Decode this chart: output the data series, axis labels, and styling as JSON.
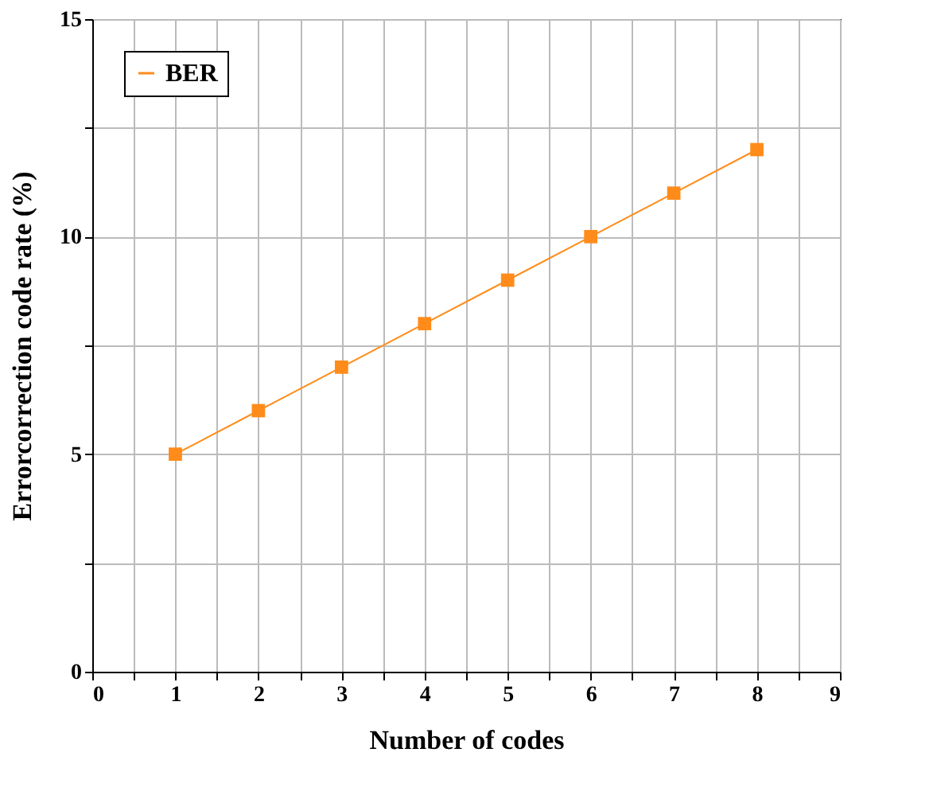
{
  "chart_data": {
    "type": "line",
    "xlabel": "Number of codes",
    "ylabel": "Errorcorrection code rate (%)",
    "x": [
      1,
      2,
      3,
      4,
      5,
      6,
      7,
      8
    ],
    "series": [
      {
        "name": "BER",
        "color": "#ff8c1a",
        "values": [
          5,
          6,
          7,
          8,
          9,
          10,
          11,
          12
        ]
      }
    ],
    "xlim": [
      0,
      9
    ],
    "xticks": [
      0,
      {
        "value": 0.5,
        "label": null
      },
      1,
      {
        "value": 1.5,
        "label": null
      },
      2,
      {
        "value": 2.5,
        "label": null
      },
      3,
      {
        "value": 3.5,
        "label": null
      },
      4,
      {
        "value": 4.5,
        "label": null
      },
      5,
      {
        "value": 5.5,
        "label": null
      },
      6,
      {
        "value": 6.5,
        "label": null
      },
      7,
      {
        "value": 7.5,
        "label": null
      },
      8,
      {
        "value": 8.5,
        "label": null
      },
      9
    ],
    "ylim": [
      0,
      15
    ],
    "yticks": [
      0,
      {
        "value": 2.5,
        "label": null
      },
      5,
      {
        "value": 7.5,
        "label": null
      },
      10,
      {
        "value": 12.5,
        "label": null
      },
      15
    ],
    "grid": true,
    "legend": "top left",
    "marker": "square",
    "line_style": "solid"
  }
}
